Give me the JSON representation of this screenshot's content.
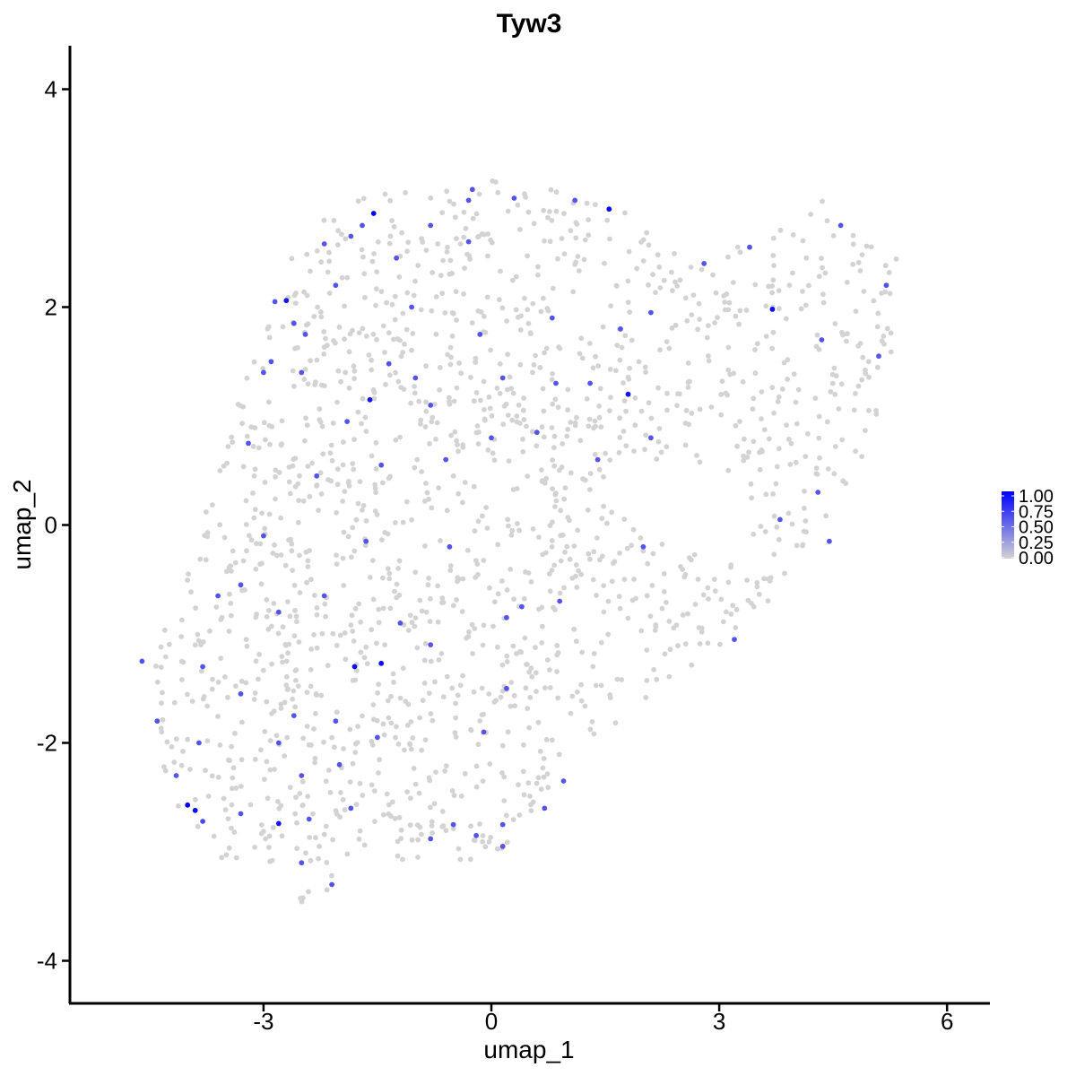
{
  "chart_data": {
    "type": "scatter",
    "title": "Tyw3",
    "xlabel": "umap_1",
    "ylabel": "umap_2",
    "xlim": [
      -5.55,
      6.55
    ],
    "ylim": [
      -4.35,
      4.35
    ],
    "xticks": [
      -3,
      0,
      3,
      6
    ],
    "yticks": [
      -4,
      -2,
      0,
      2,
      4
    ],
    "grid": false,
    "legend": {
      "position": "right",
      "type": "colorbar",
      "labels": [
        "1.00",
        "0.75",
        "0.50",
        "0.25",
        "0.00"
      ],
      "values": [
        1.0,
        0.75,
        0.5,
        0.25,
        0.0
      ],
      "color_low": "#d3d3d3",
      "color_high": "#0000ff"
    },
    "expressed_points": [
      {
        "x": -2.7,
        "y": 2.06,
        "v": 0.9
      },
      {
        "x": -1.55,
        "y": 2.86,
        "v": 1.0
      },
      {
        "x": 1.55,
        "y": 2.9,
        "v": 0.95
      },
      {
        "x": 3.7,
        "y": 1.98,
        "v": 0.95
      },
      {
        "x": -1.6,
        "y": 1.15,
        "v": 0.9
      },
      {
        "x": 1.8,
        "y": 1.2,
        "v": 0.9
      },
      {
        "x": -1.8,
        "y": -1.3,
        "v": 0.95
      },
      {
        "x": -1.45,
        "y": -1.27,
        "v": 0.95
      },
      {
        "x": -4.0,
        "y": -2.57,
        "v": 1.0
      },
      {
        "x": -3.9,
        "y": -2.62,
        "v": 0.95
      },
      {
        "x": -2.8,
        "y": -2.74,
        "v": 0.9
      },
      {
        "x": -3.8,
        "y": -2.72,
        "v": 0.65
      },
      {
        "x": -2.85,
        "y": 2.05,
        "v": 0.6
      },
      {
        "x": -2.6,
        "y": 1.85,
        "v": 0.6
      },
      {
        "x": -2.45,
        "y": 1.75,
        "v": 0.6
      },
      {
        "x": -2.2,
        "y": 2.58,
        "v": 0.6
      },
      {
        "x": -1.85,
        "y": 2.65,
        "v": 0.6
      },
      {
        "x": -1.7,
        "y": 2.75,
        "v": 0.6
      },
      {
        "x": -1.25,
        "y": 2.45,
        "v": 0.6
      },
      {
        "x": -0.8,
        "y": 2.75,
        "v": 0.6
      },
      {
        "x": -0.3,
        "y": 2.98,
        "v": 0.6
      },
      {
        "x": -0.25,
        "y": 3.08,
        "v": 0.6
      },
      {
        "x": 0.3,
        "y": 3.0,
        "v": 0.6
      },
      {
        "x": 1.1,
        "y": 2.98,
        "v": 0.6
      },
      {
        "x": -2.05,
        "y": 2.2,
        "v": 0.6
      },
      {
        "x": -1.35,
        "y": 1.48,
        "v": 0.6
      },
      {
        "x": -1.0,
        "y": 1.35,
        "v": 0.6
      },
      {
        "x": -0.8,
        "y": 1.1,
        "v": 0.6
      },
      {
        "x": -2.9,
        "y": 1.5,
        "v": 0.6
      },
      {
        "x": -3.0,
        "y": 1.4,
        "v": 0.6
      },
      {
        "x": -3.2,
        "y": 0.75,
        "v": 0.6
      },
      {
        "x": -2.5,
        "y": 1.4,
        "v": 0.6
      },
      {
        "x": -1.9,
        "y": 0.95,
        "v": 0.6
      },
      {
        "x": 0.8,
        "y": 1.9,
        "v": 0.6
      },
      {
        "x": 2.1,
        "y": 1.95,
        "v": 0.6
      },
      {
        "x": 1.7,
        "y": 1.8,
        "v": 0.6
      },
      {
        "x": 2.8,
        "y": 2.4,
        "v": 0.6
      },
      {
        "x": 3.4,
        "y": 2.55,
        "v": 0.6
      },
      {
        "x": 4.35,
        "y": 1.7,
        "v": 0.6
      },
      {
        "x": 4.6,
        "y": 2.75,
        "v": 0.6
      },
      {
        "x": 5.2,
        "y": 2.2,
        "v": 0.6
      },
      {
        "x": 5.1,
        "y": 1.55,
        "v": 0.6
      },
      {
        "x": 4.3,
        "y": 0.3,
        "v": 0.6
      },
      {
        "x": 3.8,
        "y": 0.05,
        "v": 0.6
      },
      {
        "x": 4.45,
        "y": -0.15,
        "v": 0.6
      },
      {
        "x": 2.1,
        "y": 0.8,
        "v": 0.6
      },
      {
        "x": 1.4,
        "y": 0.6,
        "v": 0.6
      },
      {
        "x": 0.6,
        "y": 0.85,
        "v": 0.6
      },
      {
        "x": -0.6,
        "y": 0.6,
        "v": 0.6
      },
      {
        "x": 0.0,
        "y": 0.8,
        "v": 0.6
      },
      {
        "x": -1.45,
        "y": 0.55,
        "v": 0.6
      },
      {
        "x": -2.3,
        "y": 0.45,
        "v": 0.6
      },
      {
        "x": -3.0,
        "y": -0.1,
        "v": 0.6
      },
      {
        "x": -3.6,
        "y": -0.65,
        "v": 0.6
      },
      {
        "x": -3.3,
        "y": -0.55,
        "v": 0.6
      },
      {
        "x": -2.8,
        "y": -0.8,
        "v": 0.6
      },
      {
        "x": -2.2,
        "y": -0.65,
        "v": 0.6
      },
      {
        "x": -1.65,
        "y": -0.15,
        "v": 0.6
      },
      {
        "x": -0.55,
        "y": -0.2,
        "v": 0.6
      },
      {
        "x": 0.2,
        "y": -0.85,
        "v": 0.6
      },
      {
        "x": 0.4,
        "y": -0.75,
        "v": 0.6
      },
      {
        "x": 0.9,
        "y": -0.7,
        "v": 0.6
      },
      {
        "x": 2.0,
        "y": -0.2,
        "v": 0.6
      },
      {
        "x": 3.2,
        "y": -1.05,
        "v": 0.6
      },
      {
        "x": -4.6,
        "y": -1.25,
        "v": 0.6
      },
      {
        "x": -4.4,
        "y": -1.8,
        "v": 0.6
      },
      {
        "x": -3.8,
        "y": -1.3,
        "v": 0.6
      },
      {
        "x": -3.3,
        "y": -1.55,
        "v": 0.6
      },
      {
        "x": -2.6,
        "y": -1.75,
        "v": 0.6
      },
      {
        "x": -2.05,
        "y": -1.8,
        "v": 0.6
      },
      {
        "x": -2.0,
        "y": -2.2,
        "v": 0.6
      },
      {
        "x": -1.5,
        "y": -1.95,
        "v": 0.6
      },
      {
        "x": -2.5,
        "y": -2.3,
        "v": 0.6
      },
      {
        "x": -2.4,
        "y": -2.7,
        "v": 0.6
      },
      {
        "x": -1.85,
        "y": -2.6,
        "v": 0.6
      },
      {
        "x": -2.1,
        "y": -3.3,
        "v": 0.6
      },
      {
        "x": -2.5,
        "y": -3.1,
        "v": 0.6
      },
      {
        "x": -3.3,
        "y": -2.65,
        "v": 0.6
      },
      {
        "x": -0.8,
        "y": -2.88,
        "v": 0.6
      },
      {
        "x": -0.5,
        "y": -2.75,
        "v": 0.6
      },
      {
        "x": -0.2,
        "y": -2.85,
        "v": 0.6
      },
      {
        "x": 0.15,
        "y": -2.75,
        "v": 0.6
      },
      {
        "x": 0.15,
        "y": -2.95,
        "v": 0.6
      },
      {
        "x": 0.7,
        "y": -2.6,
        "v": 0.6
      },
      {
        "x": 0.95,
        "y": -2.35,
        "v": 0.6
      },
      {
        "x": -0.1,
        "y": -1.9,
        "v": 0.6
      },
      {
        "x": 0.2,
        "y": -1.5,
        "v": 0.6
      },
      {
        "x": -0.8,
        "y": -1.1,
        "v": 0.6
      },
      {
        "x": -1.2,
        "y": -0.9,
        "v": 0.6
      },
      {
        "x": -4.15,
        "y": -2.3,
        "v": 0.6
      },
      {
        "x": -3.85,
        "y": -2.0,
        "v": 0.6
      },
      {
        "x": -1.05,
        "y": 2.0,
        "v": 0.6
      },
      {
        "x": -0.3,
        "y": 2.6,
        "v": 0.6
      },
      {
        "x": 0.85,
        "y": 1.3,
        "v": 0.6
      },
      {
        "x": 1.3,
        "y": 1.3,
        "v": 0.6
      },
      {
        "x": 0.15,
        "y": 1.35,
        "v": 0.6
      },
      {
        "x": -0.15,
        "y": 1.75,
        "v": 0.6
      },
      {
        "x": -2.8,
        "y": -2.0,
        "v": 0.6
      }
    ],
    "baseline_value": 0.0,
    "baseline_cells": "remaining cells at 0.00 (grey)"
  }
}
